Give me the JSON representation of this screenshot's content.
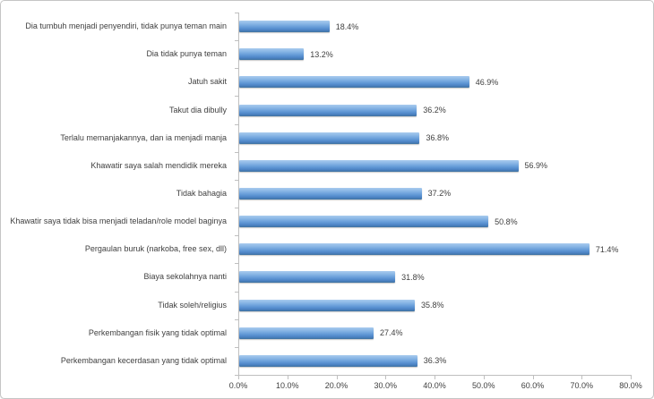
{
  "chart_data": {
    "type": "bar",
    "orientation": "horizontal",
    "title": "",
    "categories": [
      "Dia tumbuh menjadi penyendiri, tidak punya teman main",
      "Dia tidak punya teman",
      "Jatuh sakit",
      "Takut dia dibully",
      "Terlalu memanjakannya, dan ia menjadi manja",
      "Khawatir saya salah mendidik mereka",
      "Tidak bahagia",
      "Khawatir saya tidak bisa menjadi teladan/role model baginya",
      "Pergaulan buruk (narkoba, free sex, dll)",
      "Biaya sekolahnya nanti",
      "Tidak soleh/religius",
      "Perkembangan fisik yang tidak optimal",
      "Perkembangan kecerdasan yang tidak optimal"
    ],
    "values": [
      18.4,
      13.2,
      46.9,
      36.2,
      36.8,
      56.9,
      37.2,
      50.8,
      71.4,
      31.8,
      35.8,
      27.4,
      36.3
    ],
    "value_labels": [
      "18.4%",
      "13.2%",
      "46.9%",
      "36.2%",
      "36.8%",
      "56.9%",
      "37.2%",
      "50.8%",
      "71.4%",
      "31.8%",
      "35.8%",
      "27.4%",
      "36.3%"
    ],
    "x_tick_labels": [
      "0.0%",
      "10.0%",
      "20.0%",
      "30.0%",
      "40.0%",
      "50.0%",
      "60.0%",
      "70.0%",
      "80.0%"
    ],
    "xlim": [
      0,
      80
    ],
    "x_tick_step": 10,
    "grid": false,
    "legend": false,
    "data_labels": true,
    "colors": {
      "bar": "#5B9BD5",
      "bar_gradient_top": "#A9CBEE",
      "bar_gradient_bottom": "#40729F",
      "axis": "#BFBFBF",
      "text": "#404040",
      "frame_border": "#C5C5C5",
      "background": "#FFFFFF"
    }
  }
}
